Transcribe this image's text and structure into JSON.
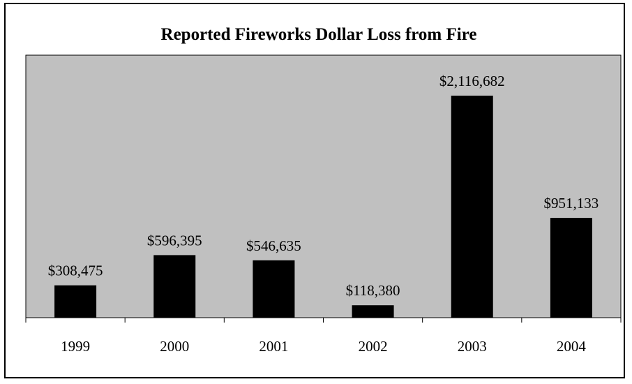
{
  "colors": {
    "plot_background": "#c0c0c0",
    "bar": "#000000",
    "frame": "#000000",
    "text": "#000000"
  },
  "chart_data": {
    "type": "bar",
    "title": "Reported Fireworks Dollar Loss from Fire",
    "xlabel": "",
    "ylabel": "",
    "categories": [
      "1999",
      "2000",
      "2001",
      "2002",
      "2003",
      "2004"
    ],
    "values": [
      308475,
      596395,
      546635,
      118380,
      2116682,
      951133
    ],
    "data_labels": [
      "$308,475",
      "$596,395",
      "$546,635",
      "$118,380",
      "$2,116,682",
      "$951,133"
    ],
    "ylim": [
      0,
      2500000
    ],
    "grid": false,
    "legend": "none"
  }
}
